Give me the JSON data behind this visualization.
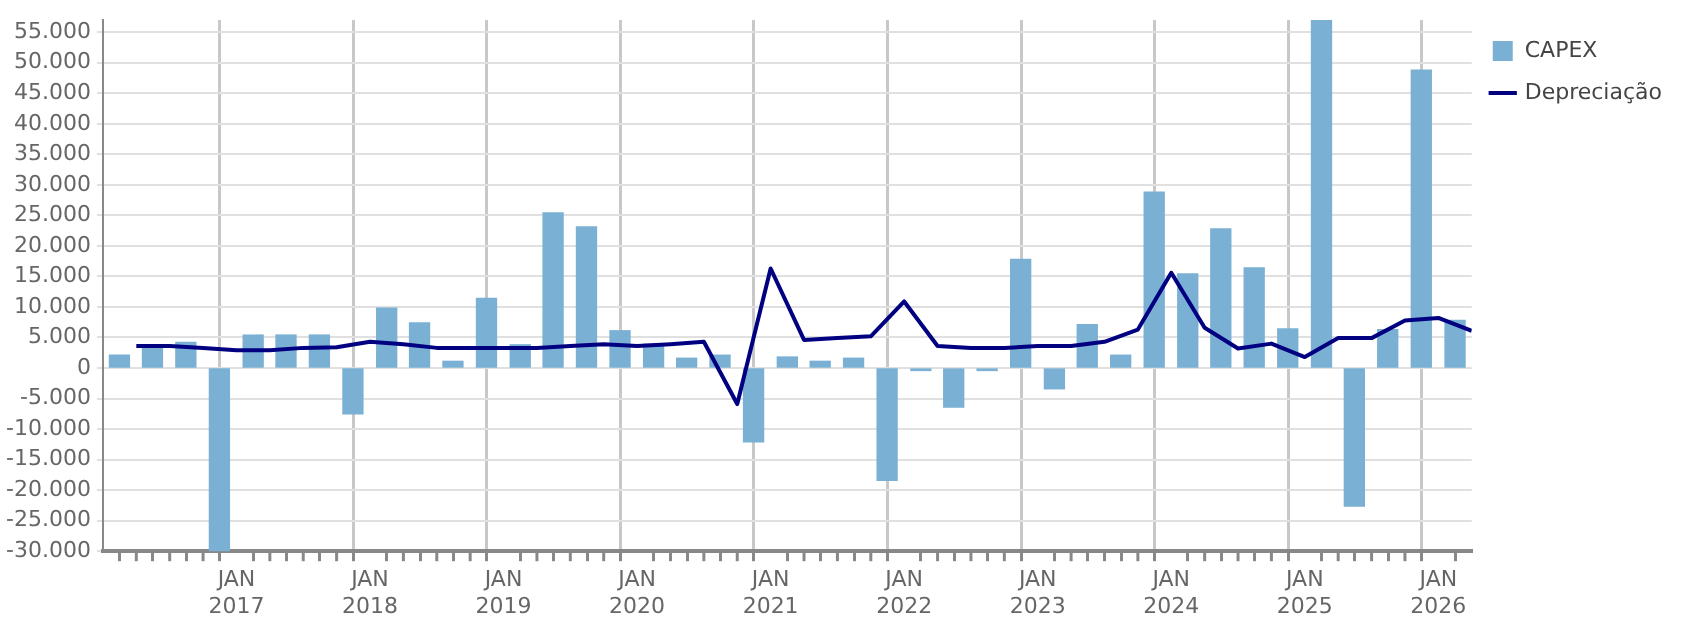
{
  "chart_data": {
    "type": "bar",
    "x": [
      "2016-02-15",
      "2016-05-15",
      "2016-08-15",
      "2016-11-15",
      "2017-02-15",
      "2017-05-15",
      "2017-08-15",
      "2017-11-15",
      "2018-02-15",
      "2018-05-15",
      "2018-08-15",
      "2018-11-15",
      "2019-02-15",
      "2019-05-15",
      "2019-08-15",
      "2019-11-15",
      "2020-02-15",
      "2020-05-15",
      "2020-08-15",
      "2020-11-15",
      "2021-02-15",
      "2021-05-15",
      "2021-08-15",
      "2021-11-15",
      "2022-02-15",
      "2022-05-15",
      "2022-08-15",
      "2022-11-15",
      "2023-02-15",
      "2023-05-15",
      "2023-08-15",
      "2023-11-15",
      "2024-02-15",
      "2024-05-15",
      "2024-08-15",
      "2024-11-15",
      "2025-02-15",
      "2025-05-15",
      "2025-08-15",
      "2025-11-15",
      "2026-02-15"
    ],
    "series": [
      {
        "name": "CAPEX",
        "color": "#7ab0d4",
        "values": [
          2100,
          3300,
          4200,
          -30000,
          5400,
          5400,
          5400,
          -7500,
          9800,
          7400,
          1100,
          11400,
          3800,
          25400,
          23100,
          6100,
          3900,
          1600,
          2100,
          -12100,
          1800,
          1100,
          1600,
          -18400,
          -400,
          -6400,
          -400,
          17800,
          -3400,
          7100,
          2100,
          28800,
          15400,
          22800,
          16400,
          6400,
          57000,
          -22600,
          6300,
          48800,
          7800
        ]
      },
      {
        "name": "Depreciação",
        "type": "line",
        "color": "#000080",
        "x": [
          "2016-04-01",
          "2016-07-01",
          "2016-10-01",
          "2017-01-01",
          "2017-04-01",
          "2017-07-01",
          "2017-10-01",
          "2018-01-01",
          "2018-04-01",
          "2018-07-01",
          "2018-10-01",
          "2019-01-01",
          "2019-04-01",
          "2019-07-01",
          "2019-10-01",
          "2020-01-01",
          "2020-04-01",
          "2020-07-01",
          "2020-10-01",
          "2021-01-01",
          "2021-04-01",
          "2021-07-01",
          "2021-10-01",
          "2022-01-01",
          "2022-04-01",
          "2022-07-01",
          "2022-10-01",
          "2023-01-01",
          "2023-04-01",
          "2023-07-01",
          "2023-10-01",
          "2024-01-01",
          "2024-04-01",
          "2024-07-01",
          "2024-10-01",
          "2025-01-01",
          "2025-04-01",
          "2025-07-01",
          "2025-10-01",
          "2026-01-01",
          "2026-04-01"
        ],
        "values": [
          3600,
          3600,
          3300,
          2900,
          2900,
          3300,
          3400,
          4300,
          3900,
          3300,
          3300,
          3300,
          3300,
          3600,
          3900,
          3600,
          3900,
          4300,
          -5900,
          16300,
          4600,
          4900,
          5200,
          10900,
          3600,
          3300,
          3300,
          3600,
          3600,
          4300,
          6300,
          15600,
          6600,
          3200,
          4000,
          1800,
          4900,
          4900,
          7800,
          8200,
          6100
        ]
      }
    ],
    "xlim": [
      "2016-01-01",
      "2026-04-01"
    ],
    "xticks": [
      {
        "value": "2016-04-01",
        "label": null
      },
      {
        "value": "2016-07-01",
        "label": null
      },
      {
        "value": "2016-10-01",
        "label": null
      },
      {
        "value": "2017-01-01",
        "label": "JAN 2017"
      },
      {
        "value": "2017-04-01",
        "label": null
      },
      {
        "value": "2017-07-01",
        "label": null
      },
      {
        "value": "2017-10-01",
        "label": null
      },
      {
        "value": "2018-01-01",
        "label": "JAN 2018"
      },
      {
        "value": "2018-04-01",
        "label": null
      },
      {
        "value": "2018-07-01",
        "label": null
      },
      {
        "value": "2018-10-01",
        "label": null
      },
      {
        "value": "2019-01-01",
        "label": "JAN 2019"
      },
      {
        "value": "2019-04-01",
        "label": null
      },
      {
        "value": "2019-07-01",
        "label": null
      },
      {
        "value": "2019-10-01",
        "label": null
      },
      {
        "value": "2020-01-01",
        "label": "JAN 2020"
      },
      {
        "value": "2020-04-01",
        "label": null
      },
      {
        "value": "2020-07-01",
        "label": null
      },
      {
        "value": "2020-10-01",
        "label": null
      },
      {
        "value": "2021-01-01",
        "label": "JAN 2021"
      },
      {
        "value": "2021-04-01",
        "label": null
      },
      {
        "value": "2021-07-01",
        "label": null
      },
      {
        "value": "2021-10-01",
        "label": null
      },
      {
        "value": "2022-01-01",
        "label": "JAN 2022"
      },
      {
        "value": "2022-04-01",
        "label": null
      },
      {
        "value": "2022-07-01",
        "label": null
      },
      {
        "value": "2022-10-01",
        "label": null
      },
      {
        "value": "2023-01-01",
        "label": "JAN 2023"
      },
      {
        "value": "2023-04-01",
        "label": null
      },
      {
        "value": "2023-07-01",
        "label": null
      },
      {
        "value": "2023-10-01",
        "label": null
      },
      {
        "value": "2024-01-01",
        "label": "JAN 2024"
      },
      {
        "value": "2024-04-01",
        "label": null
      },
      {
        "value": "2024-07-01",
        "label": null
      },
      {
        "value": "2024-10-01",
        "label": null
      },
      {
        "value": "2025-01-01",
        "label": "JAN 2025"
      },
      {
        "value": "2025-04-01",
        "label": null
      },
      {
        "value": "2025-07-01",
        "label": null
      },
      {
        "value": "2025-10-01",
        "label": null
      },
      {
        "value": "2026-01-01",
        "label": "JAN 2026"
      }
    ],
    "ylim": [
      -30000,
      57000
    ],
    "yticks": [
      {
        "value": -30000,
        "label": "-30.000"
      },
      {
        "value": -25000,
        "label": "-25.000"
      },
      {
        "value": -20000,
        "label": "-20.000"
      },
      {
        "value": -15000,
        "label": "-15.000"
      },
      {
        "value": -10000,
        "label": "-10.000"
      },
      {
        "value": -5000,
        "label": "-5.000"
      },
      0,
      {
        "value": 5000,
        "label": "5.000"
      },
      {
        "value": 10000,
        "label": "10.000"
      },
      {
        "value": 15000,
        "label": "15.000"
      },
      {
        "value": 20000,
        "label": "20.000"
      },
      {
        "value": 25000,
        "label": "25.000"
      },
      {
        "value": 30000,
        "label": "30.000"
      },
      {
        "value": 35000,
        "label": "35.000"
      },
      {
        "value": 40000,
        "label": "40.000"
      },
      {
        "value": 45000,
        "label": "45.000"
      },
      {
        "value": 50000,
        "label": "50.000"
      },
      {
        "value": 55000,
        "label": "55.000"
      }
    ],
    "grid": true,
    "legend": "top right"
  }
}
